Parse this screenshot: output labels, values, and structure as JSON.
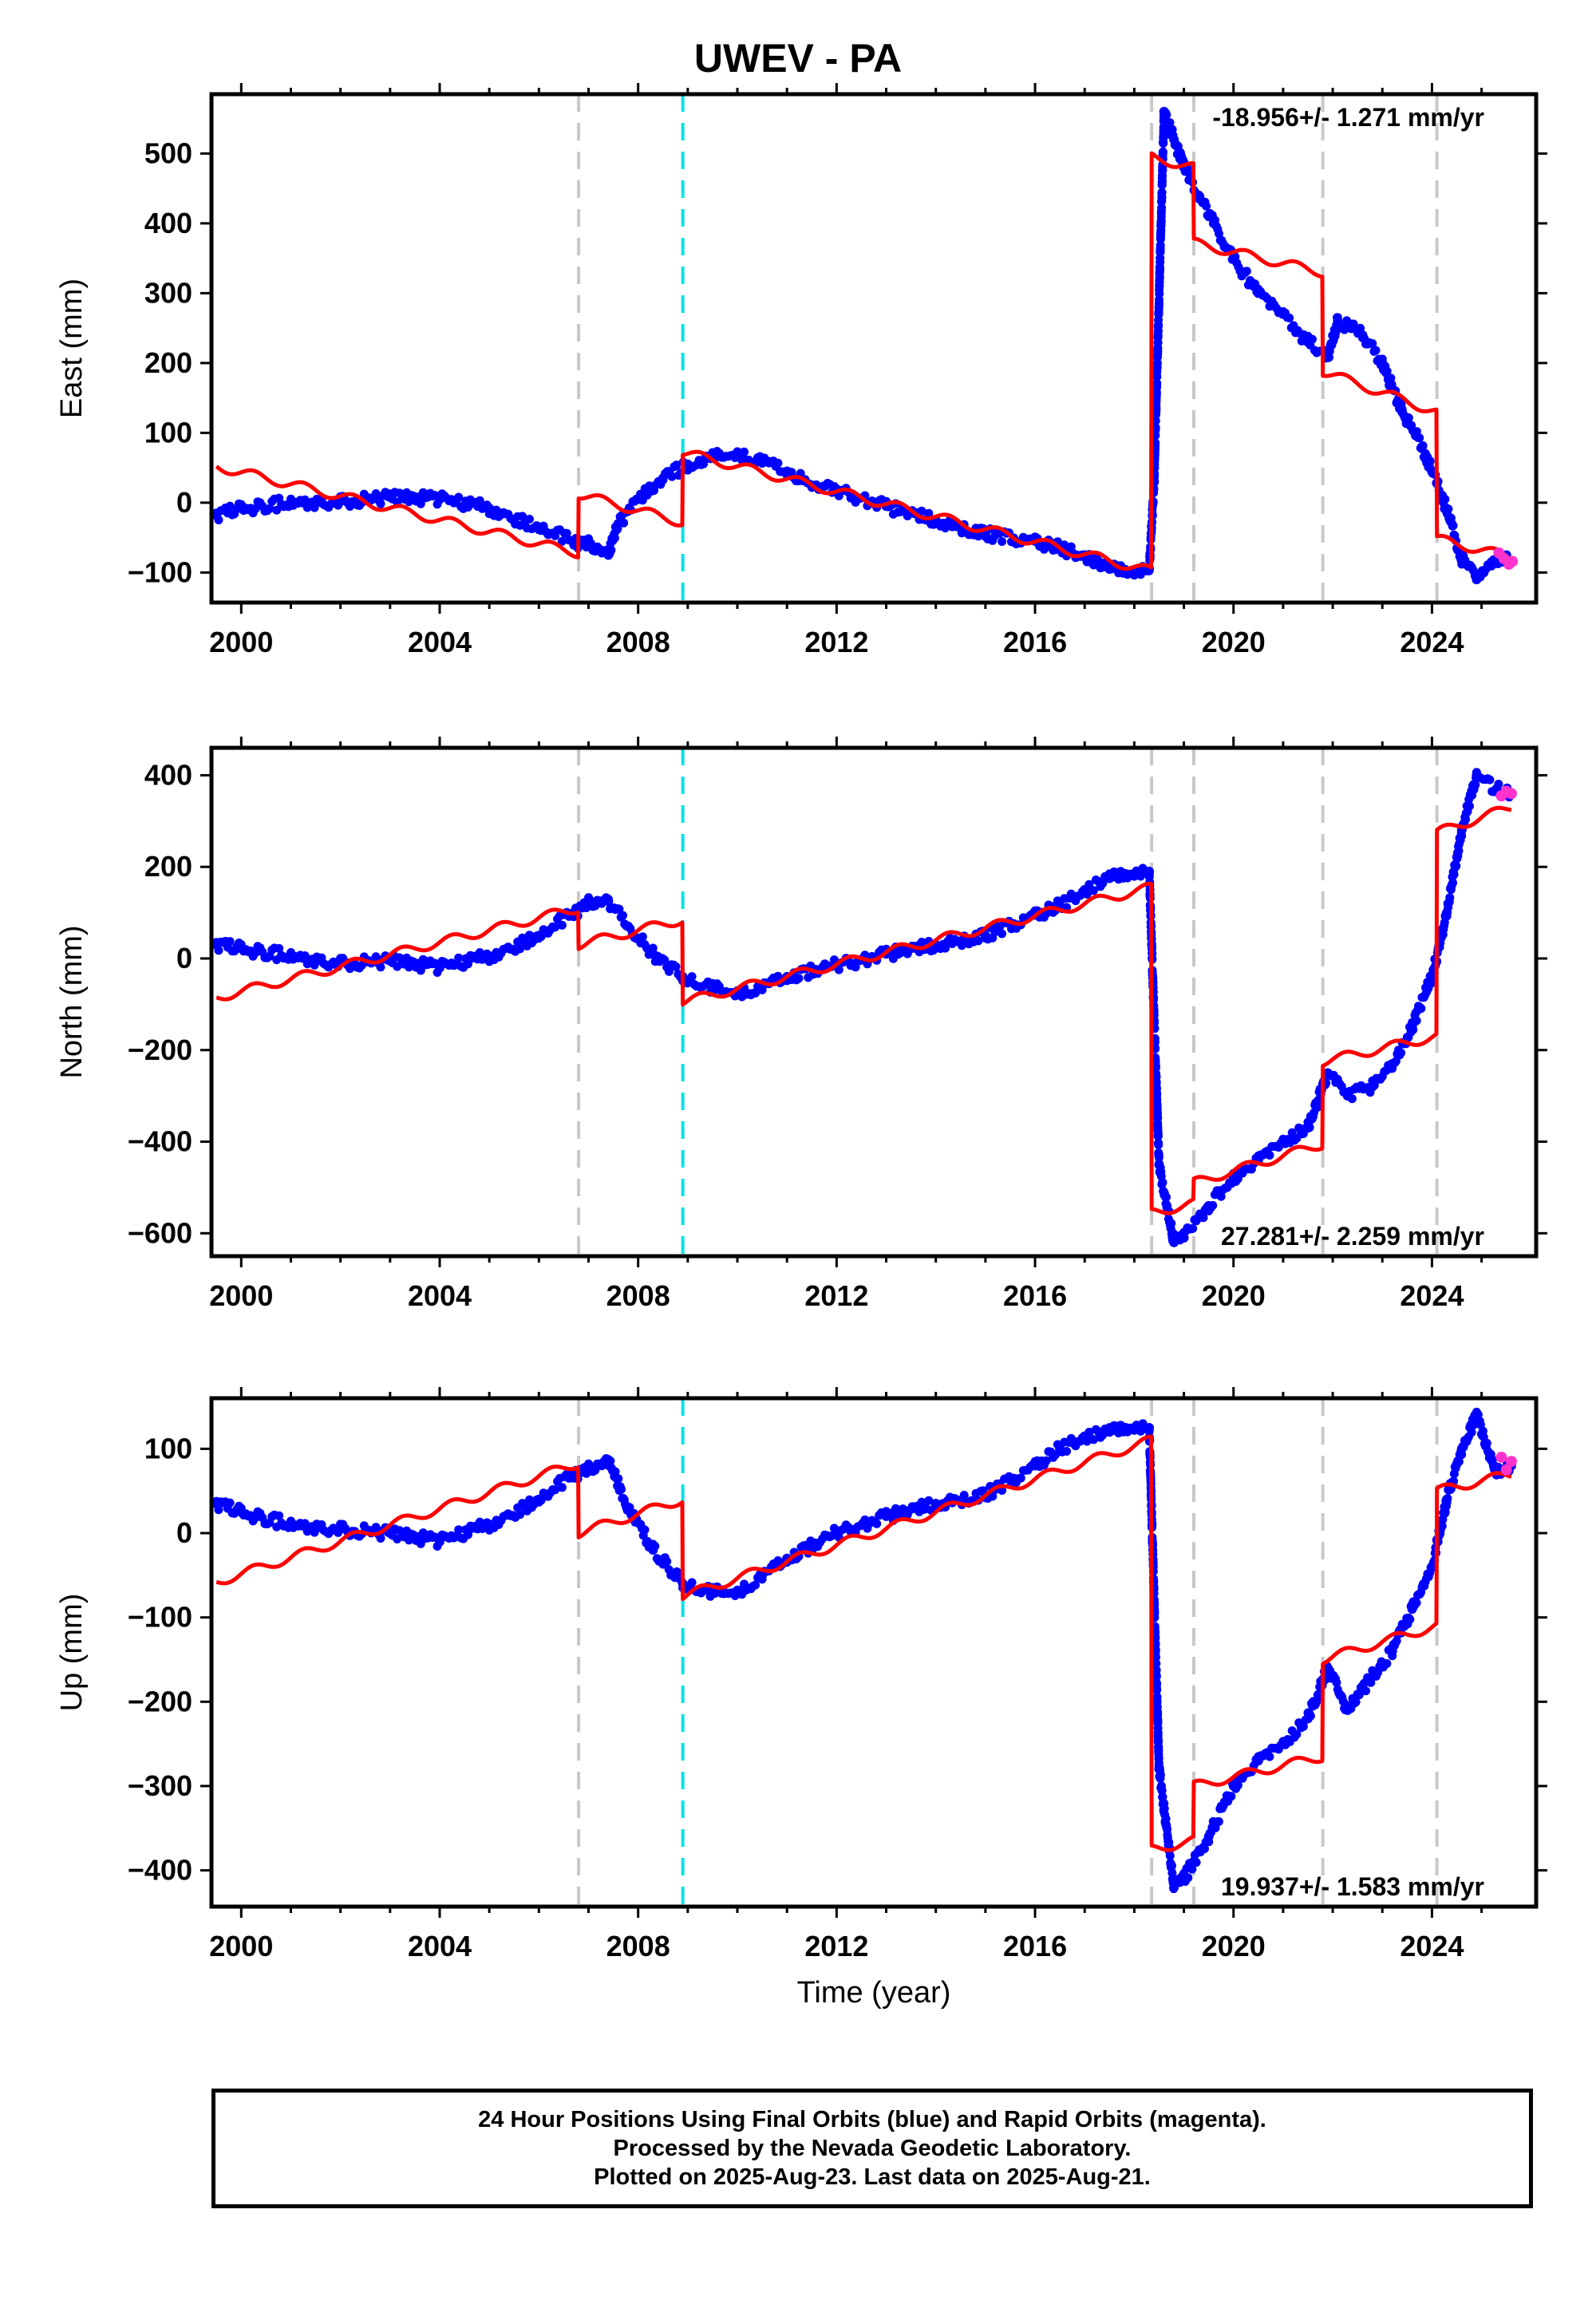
{
  "title": "UWEV - PA",
  "caption": {
    "line1": "24 Hour Positions Using Final Orbits (blue) and Rapid Orbits (magenta).",
    "line2": "Processed by the Nevada Geodetic Laboratory.",
    "line3": "Plotted on 2025-Aug-23. Last data on 2025-Aug-21."
  },
  "colors": {
    "final_orbits": "#0000ff",
    "rapid_orbits": "#ff33cc",
    "model": "#ff0000",
    "equipment_change": "#c8c8c8",
    "earthquake": "#00e5e5"
  },
  "chart_data": [
    {
      "type": "scatter",
      "ylabel": "East (mm)",
      "xlabel": "",
      "xlim": [
        1999.4,
        2026.1
      ],
      "ylim": [
        -143,
        585
      ],
      "xticks": [
        2000,
        2004,
        2008,
        2012,
        2016,
        2020,
        2024
      ],
      "yticks": [
        -100,
        0,
        100,
        200,
        300,
        400,
        500
      ],
      "rate_label": "-18.956+/- 1.271 mm/yr",
      "rate_position": "top-right",
      "steps_gray": [
        2006.8,
        2018.35,
        2019.2,
        2021.8,
        2024.1
      ],
      "steps_cyan": [
        2008.9
      ],
      "series": [
        {
          "name": "Final Orbits",
          "color": "#0000ff",
          "x": [
            1999.5,
            2000.0,
            2001.0,
            2002.0,
            2003.0,
            2004.0,
            2005.0,
            2006.0,
            2006.7,
            2007.0,
            2007.4,
            2007.6,
            2008.0,
            2008.5,
            2009.0,
            2009.5,
            2010.0,
            2010.5,
            2011.0,
            2011.5,
            2012.0,
            2013.0,
            2014.0,
            2015.0,
            2016.0,
            2016.5,
            2017.0,
            2017.5,
            2018.0,
            2018.3,
            2018.4,
            2018.6,
            2018.8,
            2019.0,
            2019.3,
            2019.6,
            2020.0,
            2020.5,
            2021.0,
            2021.5,
            2021.9,
            2022.1,
            2022.6,
            2023.0,
            2023.4,
            2023.8,
            2024.0,
            2024.3,
            2024.6,
            2024.9,
            2025.2,
            2025.5
          ],
          "y": [
            -18,
            -8,
            0,
            2,
            8,
            5,
            -8,
            -35,
            -55,
            -60,
            -75,
            -30,
            5,
            35,
            55,
            65,
            70,
            62,
            45,
            25,
            18,
            -5,
            -25,
            -45,
            -55,
            -65,
            -75,
            -95,
            -100,
            -95,
            30,
            560,
            520,
            480,
            440,
            400,
            350,
            300,
            270,
            230,
            210,
            260,
            240,
            200,
            130,
            80,
            45,
            -10,
            -80,
            -110,
            -85,
            -75
          ]
        },
        {
          "name": "Rapid Orbits",
          "color": "#ff33cc",
          "x": [
            2025.35,
            2025.45,
            2025.55,
            2025.62
          ],
          "y": [
            -72,
            -80,
            -88,
            -84
          ]
        },
        {
          "name": "Model",
          "color": "#ff0000",
          "x": [
            1999.5,
            2006.79,
            2006.8,
            2008.89,
            2008.9,
            2018.34,
            2018.35,
            2019.19,
            2019.2,
            2021.79,
            2021.8,
            2024.09,
            2024.1,
            2025.6
          ],
          "y": [
            52,
            -72,
            12,
            -28,
            72,
            -98,
            495,
            480,
            372,
            330,
            188,
            130,
            -52,
            -78
          ]
        }
      ]
    },
    {
      "type": "scatter",
      "ylabel": "North (mm)",
      "xlabel": "",
      "xlim": [
        1999.4,
        2026.1
      ],
      "ylim": [
        -650,
        460
      ],
      "xticks": [
        2000,
        2004,
        2008,
        2012,
        2016,
        2020,
        2024
      ],
      "yticks": [
        -600,
        -400,
        -200,
        0,
        200,
        400
      ],
      "rate_label": "27.281+/- 2.259 mm/yr",
      "rate_position": "bottom-right",
      "steps_gray": [
        2006.8,
        2018.35,
        2019.2,
        2021.8,
        2024.1
      ],
      "steps_cyan": [
        2008.9
      ],
      "series": [
        {
          "name": "Final Orbits",
          "color": "#0000ff",
          "x": [
            1999.5,
            2000.0,
            2001.0,
            2002.0,
            2003.0,
            2004.0,
            2005.0,
            2006.0,
            2006.7,
            2007.0,
            2007.4,
            2007.8,
            2008.3,
            2008.9,
            2009.5,
            2010.0,
            2010.5,
            2011.0,
            2012.0,
            2013.0,
            2014.0,
            2015.0,
            2016.0,
            2016.5,
            2017.0,
            2017.5,
            2018.0,
            2018.3,
            2018.5,
            2018.8,
            2019.0,
            2019.5,
            2020.0,
            2020.5,
            2021.0,
            2021.5,
            2021.9,
            2022.3,
            2022.8,
            2023.2,
            2023.6,
            2024.0,
            2024.3,
            2024.6,
            2024.9,
            2025.3,
            2025.6
          ],
          "y": [
            30,
            22,
            5,
            -10,
            -5,
            -20,
            5,
            50,
            100,
            120,
            125,
            70,
            10,
            -40,
            -65,
            -75,
            -60,
            -40,
            -15,
            10,
            30,
            50,
            95,
            115,
            150,
            175,
            185,
            190,
            -450,
            -620,
            -610,
            -540,
            -480,
            -440,
            -400,
            -370,
            -250,
            -300,
            -280,
            -230,
            -150,
            -40,
            100,
            280,
            400,
            370,
            360
          ]
        },
        {
          "name": "Rapid Orbits",
          "color": "#ff33cc",
          "x": [
            2025.4,
            2025.5,
            2025.6
          ],
          "y": [
            355,
            365,
            360
          ]
        },
        {
          "name": "Model",
          "color": "#ff0000",
          "x": [
            1999.5,
            2006.79,
            2006.8,
            2008.89,
            2008.9,
            2018.34,
            2018.35,
            2019.19,
            2019.2,
            2021.79,
            2021.8,
            2024.09,
            2024.1,
            2025.6
          ],
          "y": [
            -85,
            110,
            30,
            85,
            -95,
            155,
            -555,
            -535,
            -490,
            -405,
            -225,
            -170,
            275,
            330
          ]
        }
      ]
    },
    {
      "type": "scatter",
      "ylabel": "Up (mm)",
      "xlabel": "Time (year)",
      "xlim": [
        1999.4,
        2026.1
      ],
      "ylim": [
        -443,
        160
      ],
      "xticks": [
        2000,
        2004,
        2008,
        2012,
        2016,
        2020,
        2024
      ],
      "yticks": [
        -400,
        -300,
        -200,
        -100,
        0,
        100
      ],
      "rate_label": "19.937+/- 1.583 mm/yr",
      "rate_position": "bottom-right",
      "steps_gray": [
        2006.8,
        2018.35,
        2019.2,
        2021.8,
        2024.1
      ],
      "steps_cyan": [
        2008.9
      ],
      "series": [
        {
          "name": "Final Orbits",
          "color": "#0000ff",
          "x": [
            1999.5,
            2000.0,
            2001.0,
            2002.0,
            2003.0,
            2004.0,
            2005.0,
            2006.0,
            2006.7,
            2007.0,
            2007.4,
            2007.8,
            2008.3,
            2008.9,
            2009.5,
            2010.0,
            2010.5,
            2011.0,
            2012.0,
            2013.0,
            2014.0,
            2015.0,
            2016.0,
            2016.5,
            2017.0,
            2017.5,
            2018.0,
            2018.3,
            2018.5,
            2018.8,
            2019.0,
            2019.5,
            2020.0,
            2020.5,
            2021.0,
            2021.5,
            2021.9,
            2022.3,
            2022.8,
            2023.2,
            2023.6,
            2024.0,
            2024.3,
            2024.6,
            2024.9,
            2025.3,
            2025.6
          ],
          "y": [
            35,
            25,
            10,
            5,
            0,
            -10,
            10,
            40,
            70,
            75,
            85,
            30,
            -20,
            -60,
            -70,
            -70,
            -50,
            -30,
            0,
            20,
            35,
            45,
            80,
            100,
            115,
            120,
            125,
            125,
            -280,
            -420,
            -410,
            -360,
            -300,
            -270,
            -250,
            -220,
            -160,
            -210,
            -170,
            -140,
            -90,
            -40,
            40,
            100,
            140,
            70,
            80
          ]
        },
        {
          "name": "Rapid Orbits",
          "color": "#ff33cc",
          "x": [
            2025.4,
            2025.5,
            2025.6
          ],
          "y": [
            90,
            75,
            85
          ]
        },
        {
          "name": "Model",
          "color": "#ff0000",
          "x": [
            1999.5,
            2006.79,
            2006.8,
            2008.89,
            2008.9,
            2018.34,
            2018.35,
            2019.19,
            2019.2,
            2021.79,
            2021.8,
            2024.09,
            2024.1,
            2025.6
          ],
          "y": [
            -58,
            83,
            0,
            40,
            -75,
            110,
            -375,
            -365,
            -300,
            -265,
            -150,
            -110,
            50,
            70
          ]
        }
      ]
    }
  ]
}
